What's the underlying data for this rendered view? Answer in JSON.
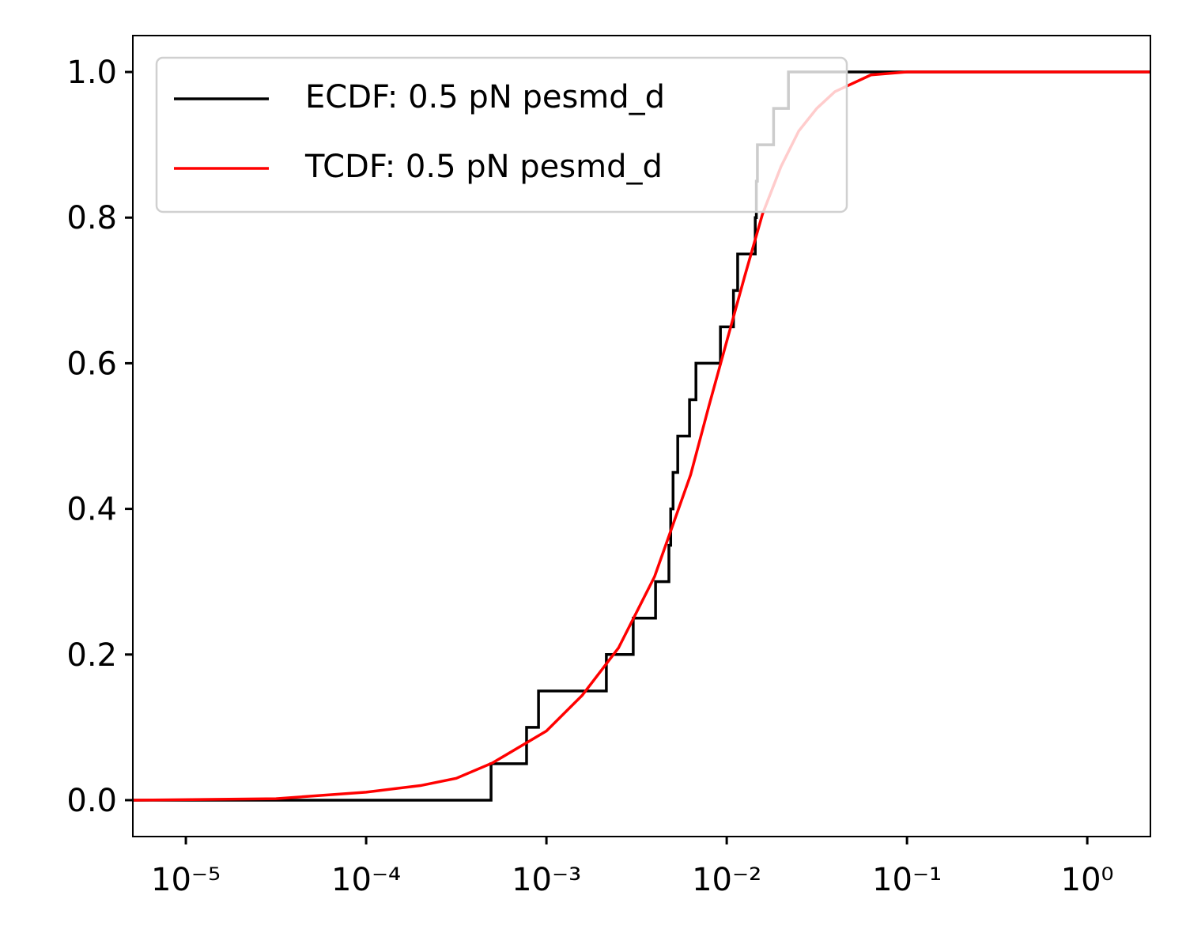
{
  "chart_data": {
    "type": "line",
    "xscale": "log",
    "xlim": [
      5.08e-06,
      2.24
    ],
    "ylim": [
      -0.05,
      1.05
    ],
    "xticks": [
      {
        "value": 1e-05,
        "label": "10⁻⁵"
      },
      {
        "value": 0.0001,
        "label": "10⁻⁴"
      },
      {
        "value": 0.001,
        "label": "10⁻³"
      },
      {
        "value": 0.01,
        "label": "10⁻²"
      },
      {
        "value": 0.1,
        "label": "10⁻¹"
      },
      {
        "value": 1,
        "label": "10⁰"
      }
    ],
    "yticks": [
      {
        "value": 0,
        "label": "0.0"
      },
      0.2,
      0.4,
      0.6,
      0.8,
      {
        "value": 1,
        "label": "1.0"
      }
    ],
    "grid": false,
    "legend": "upper left",
    "series": [
      {
        "name": "ECDF: 0.5 pN pesmd_d",
        "color": "#000000",
        "step": "post",
        "x": [
          5.08e-06,
          0.000493,
          0.000776,
          0.000904,
          0.00215,
          0.00303,
          0.00403,
          0.00478,
          0.00489,
          0.00504,
          0.00535,
          0.00622,
          0.00675,
          0.00923,
          0.0109,
          0.0115,
          0.0144,
          0.0146,
          0.0148,
          0.0182,
          0.022,
          2.24
        ],
        "values": [
          0,
          0.05,
          0.1,
          0.15,
          0.2,
          0.25,
          0.3,
          0.35,
          0.4,
          0.45,
          0.5,
          0.55,
          0.6,
          0.65,
          0.7,
          0.75,
          0.8,
          0.85,
          0.9,
          0.95,
          1.0,
          1.0
        ]
      },
      {
        "name": "TCDF: 0.5 pN pesmd_d",
        "color": "#ff0000",
        "x": [
          5.08e-06,
          3.16e-05,
          0.0001,
          0.0002,
          0.000316,
          0.000501,
          0.001,
          0.00158,
          0.00251,
          0.00398,
          0.00631,
          0.00794,
          0.01,
          0.0126,
          0.0158,
          0.02,
          0.0251,
          0.0316,
          0.0398,
          0.0631,
          0.1,
          2.24
        ],
        "values": [
          0,
          0.002,
          0.011,
          0.02,
          0.03,
          0.051,
          0.095,
          0.144,
          0.209,
          0.307,
          0.447,
          0.54,
          0.63,
          0.72,
          0.805,
          0.87,
          0.919,
          0.95,
          0.973,
          0.996,
          1.0,
          1.0
        ]
      }
    ]
  }
}
